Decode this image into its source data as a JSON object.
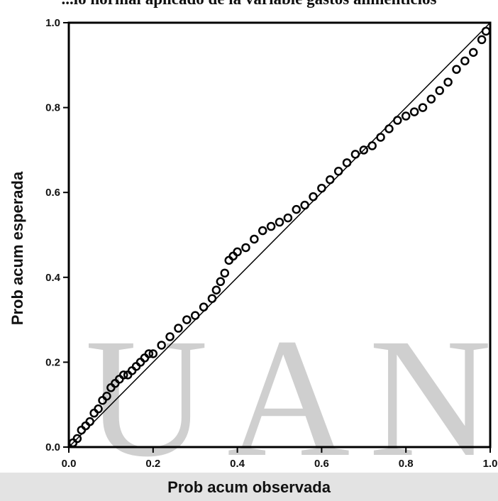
{
  "chart_data": {
    "type": "scatter",
    "title": "...lo normal aplicado de la variable gastos alimenticios",
    "xlabel": "Prob acum observada",
    "ylabel": "Prob acum esperada",
    "xlim": [
      0.0,
      1.0
    ],
    "ylim": [
      0.0,
      1.0
    ],
    "xticks": [
      "0.0",
      "0.2",
      "0.4",
      "0.6",
      "0.8",
      "1.0"
    ],
    "yticks": [
      "0.0",
      "0.2",
      "0.4",
      "0.6",
      "0.8",
      "1.0"
    ],
    "reference_line": {
      "x": [
        0.0,
        1.0
      ],
      "y": [
        0.0,
        1.0
      ]
    },
    "series": [
      {
        "x": [
          0.01,
          0.02,
          0.03,
          0.04,
          0.05,
          0.06,
          0.07,
          0.08,
          0.09,
          0.1,
          0.11,
          0.12,
          0.13,
          0.14,
          0.15,
          0.16,
          0.17,
          0.18,
          0.19,
          0.2,
          0.22,
          0.24,
          0.26,
          0.28,
          0.3,
          0.32,
          0.34,
          0.35,
          0.36,
          0.37,
          0.38,
          0.39,
          0.4,
          0.42,
          0.44,
          0.46,
          0.48,
          0.5,
          0.52,
          0.54,
          0.56,
          0.58,
          0.6,
          0.62,
          0.64,
          0.66,
          0.68,
          0.7,
          0.72,
          0.74,
          0.76,
          0.78,
          0.8,
          0.82,
          0.84,
          0.86,
          0.88,
          0.9,
          0.92,
          0.94,
          0.96,
          0.98,
          0.99
        ],
        "y": [
          0.01,
          0.02,
          0.04,
          0.05,
          0.06,
          0.08,
          0.09,
          0.11,
          0.12,
          0.14,
          0.15,
          0.16,
          0.17,
          0.17,
          0.18,
          0.19,
          0.2,
          0.21,
          0.22,
          0.22,
          0.24,
          0.26,
          0.28,
          0.3,
          0.31,
          0.33,
          0.35,
          0.37,
          0.39,
          0.41,
          0.44,
          0.45,
          0.46,
          0.47,
          0.49,
          0.51,
          0.52,
          0.53,
          0.54,
          0.56,
          0.57,
          0.59,
          0.61,
          0.63,
          0.65,
          0.67,
          0.69,
          0.7,
          0.71,
          0.73,
          0.75,
          0.77,
          0.78,
          0.79,
          0.8,
          0.82,
          0.84,
          0.86,
          0.89,
          0.91,
          0.93,
          0.96,
          0.98
        ]
      }
    ],
    "grid": false,
    "legend": "none"
  },
  "watermark": {
    "letters": [
      "U",
      "A",
      "N"
    ]
  }
}
